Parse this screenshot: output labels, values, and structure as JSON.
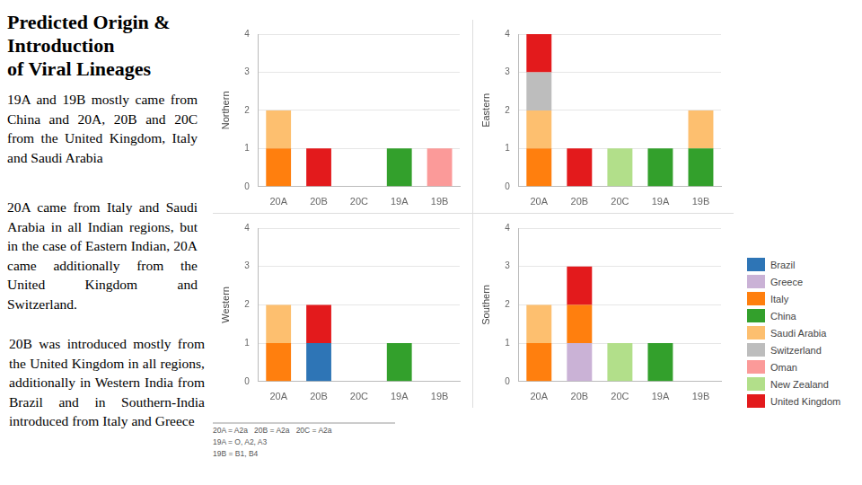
{
  "title": [
    "Predicted Origin &",
    "Introduction",
    "of Viral Lineages"
  ],
  "paragraphs": [
    "19A and 19B mostly came from China and 20A, 20B and 20C from the United Kingdom, Italy and Saudi Arabia",
    "20A came from Italy and Saudi Arabia in all Indian regions, but in the case of Eastern Indian, 20A came additionally from the United Kingdom and Switzerland.",
    "20B was introduced mostly from the United Kingdom in all regions, additionally in Western India from Brazil and in Southern-India introduced from Italy and Greece"
  ],
  "footnote": [
    "20A = A2a   20B = A2a   20C = A2a",
    "19A = O, A2, A3",
    "19B = B1, B4"
  ],
  "chart_data": [
    {
      "type": "bar",
      "stacked": true,
      "grid": true,
      "y_label": "Northern",
      "categories": [
        "20A",
        "20B",
        "20C",
        "19A",
        "19B"
      ],
      "ylim": [
        0,
        4
      ],
      "yticks": [
        0,
        1,
        2,
        3,
        4
      ],
      "series": [
        {
          "name": "Brazil",
          "color": "#2e75b6",
          "values": [
            0,
            0,
            0,
            0,
            0
          ]
        },
        {
          "name": "Greece",
          "color": "#cab2d6",
          "values": [
            0,
            0,
            0,
            0,
            0
          ]
        },
        {
          "name": "Italy",
          "color": "#ff7f0e",
          "values": [
            1,
            0,
            0,
            0,
            0
          ]
        },
        {
          "name": "China",
          "color": "#33a02c",
          "values": [
            0,
            0,
            0,
            1,
            0
          ]
        },
        {
          "name": "Saudi Arabia",
          "color": "#fdbf6f",
          "values": [
            1,
            0,
            0,
            0,
            0
          ]
        },
        {
          "name": "Switzerland",
          "color": "#bdbdbd",
          "values": [
            0,
            0,
            0,
            0,
            0
          ]
        },
        {
          "name": "Oman",
          "color": "#fb9a99",
          "values": [
            0,
            0,
            0,
            0,
            1
          ]
        },
        {
          "name": "New Zealand",
          "color": "#b2df8a",
          "values": [
            0,
            0,
            0,
            0,
            0
          ]
        },
        {
          "name": "United Kingdom",
          "color": "#e31a1c",
          "values": [
            0,
            1,
            0,
            0,
            0
          ]
        }
      ]
    },
    {
      "type": "bar",
      "stacked": true,
      "grid": true,
      "y_label": "Eastern",
      "categories": [
        "20A",
        "20B",
        "20C",
        "19A",
        "19B"
      ],
      "ylim": [
        0,
        4
      ],
      "yticks": [
        0,
        1,
        2,
        3,
        4
      ],
      "series": [
        {
          "name": "Brazil",
          "color": "#2e75b6",
          "values": [
            0,
            0,
            0,
            0,
            0
          ]
        },
        {
          "name": "Greece",
          "color": "#cab2d6",
          "values": [
            0,
            0,
            0,
            0,
            0
          ]
        },
        {
          "name": "Italy",
          "color": "#ff7f0e",
          "values": [
            1,
            0,
            0,
            0,
            0
          ]
        },
        {
          "name": "China",
          "color": "#33a02c",
          "values": [
            0,
            0,
            0,
            1,
            1
          ]
        },
        {
          "name": "Saudi Arabia",
          "color": "#fdbf6f",
          "values": [
            1,
            0,
            0,
            0,
            1
          ]
        },
        {
          "name": "Switzerland",
          "color": "#bdbdbd",
          "values": [
            1,
            0,
            0,
            0,
            0
          ]
        },
        {
          "name": "Oman",
          "color": "#fb9a99",
          "values": [
            0,
            0,
            0,
            0,
            0
          ]
        },
        {
          "name": "New Zealand",
          "color": "#b2df8a",
          "values": [
            0,
            0,
            1,
            0,
            0
          ]
        },
        {
          "name": "United Kingdom",
          "color": "#e31a1c",
          "values": [
            1,
            1,
            0,
            0,
            0
          ]
        }
      ]
    },
    {
      "type": "bar",
      "stacked": true,
      "grid": true,
      "y_label": "Western",
      "categories": [
        "20A",
        "20B",
        "20C",
        "19A",
        "19B"
      ],
      "ylim": [
        0,
        4
      ],
      "yticks": [
        0,
        1,
        2,
        3,
        4
      ],
      "series": [
        {
          "name": "Brazil",
          "color": "#2e75b6",
          "values": [
            0,
            1,
            0,
            0,
            0
          ]
        },
        {
          "name": "Greece",
          "color": "#cab2d6",
          "values": [
            0,
            0,
            0,
            0,
            0
          ]
        },
        {
          "name": "Italy",
          "color": "#ff7f0e",
          "values": [
            1,
            0,
            0,
            0,
            0
          ]
        },
        {
          "name": "China",
          "color": "#33a02c",
          "values": [
            0,
            0,
            0,
            1,
            0
          ]
        },
        {
          "name": "Saudi Arabia",
          "color": "#fdbf6f",
          "values": [
            1,
            0,
            0,
            0,
            0
          ]
        },
        {
          "name": "Switzerland",
          "color": "#bdbdbd",
          "values": [
            0,
            0,
            0,
            0,
            0
          ]
        },
        {
          "name": "Oman",
          "color": "#fb9a99",
          "values": [
            0,
            0,
            0,
            0,
            0
          ]
        },
        {
          "name": "New Zealand",
          "color": "#b2df8a",
          "values": [
            0,
            0,
            0,
            0,
            0
          ]
        },
        {
          "name": "United Kingdom",
          "color": "#e31a1c",
          "values": [
            0,
            1,
            0,
            0,
            0
          ]
        }
      ]
    },
    {
      "type": "bar",
      "stacked": true,
      "grid": true,
      "y_label": "Southern",
      "categories": [
        "20A",
        "20B",
        "20C",
        "19A",
        "19B"
      ],
      "ylim": [
        0,
        4
      ],
      "yticks": [
        0,
        1,
        2,
        3,
        4
      ],
      "series": [
        {
          "name": "Brazil",
          "color": "#2e75b6",
          "values": [
            0,
            0,
            0,
            0,
            0
          ]
        },
        {
          "name": "Greece",
          "color": "#cab2d6",
          "values": [
            0,
            1,
            0,
            0,
            0
          ]
        },
        {
          "name": "Italy",
          "color": "#ff7f0e",
          "values": [
            1,
            1,
            0,
            0,
            0
          ]
        },
        {
          "name": "China",
          "color": "#33a02c",
          "values": [
            0,
            0,
            0,
            1,
            0
          ]
        },
        {
          "name": "Saudi Arabia",
          "color": "#fdbf6f",
          "values": [
            1,
            0,
            0,
            0,
            0
          ]
        },
        {
          "name": "Switzerland",
          "color": "#bdbdbd",
          "values": [
            0,
            0,
            0,
            0,
            0
          ]
        },
        {
          "name": "Oman",
          "color": "#fb9a99",
          "values": [
            0,
            0,
            0,
            0,
            0
          ]
        },
        {
          "name": "New Zealand",
          "color": "#b2df8a",
          "values": [
            0,
            0,
            1,
            0,
            0
          ]
        },
        {
          "name": "United Kingdom",
          "color": "#e31a1c",
          "values": [
            0,
            1,
            0,
            0,
            0
          ]
        }
      ]
    }
  ]
}
